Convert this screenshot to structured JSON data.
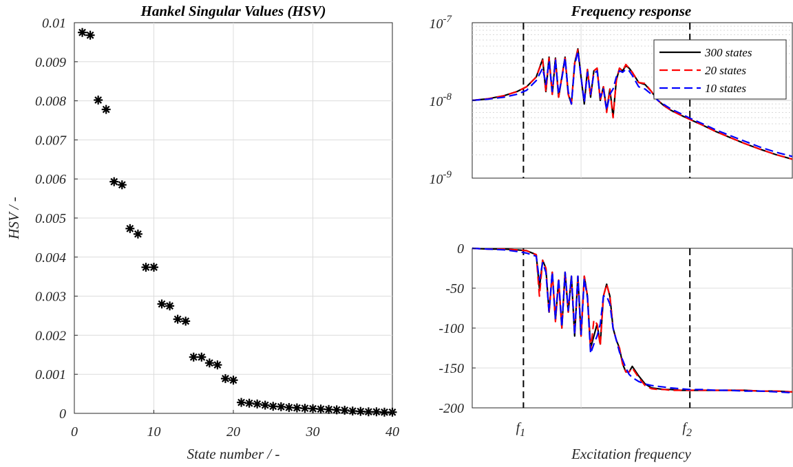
{
  "chart_data": [
    {
      "type": "scatter",
      "title": "Hankel Singular Values (HSV)",
      "xlabel": "State number / -",
      "ylabel": "HSV / -",
      "xlim": [
        0,
        40
      ],
      "ylim": [
        0,
        0.01
      ],
      "xticks": [
        "0",
        "10",
        "20",
        "30",
        "40"
      ],
      "yticks": [
        "0",
        "0.001",
        "0.002",
        "0.003",
        "0.004",
        "0.005",
        "0.006",
        "0.007",
        "0.008",
        "0.009",
        "0.01"
      ],
      "grid": true,
      "marker": "*",
      "marker_color": "#000000",
      "series": [
        {
          "x": [
            1,
            2,
            3,
            4,
            5,
            6,
            7,
            8,
            9,
            10,
            11,
            12,
            13,
            14,
            15,
            16,
            17,
            18,
            19,
            20,
            21,
            22,
            23,
            24,
            25,
            26,
            27,
            28,
            29,
            30,
            31,
            32,
            33,
            34,
            35,
            36,
            37,
            38,
            39,
            40
          ],
          "y": [
            0.00975,
            0.00968,
            0.00802,
            0.00778,
            0.00593,
            0.00585,
            0.00473,
            0.00459,
            0.00374,
            0.00374,
            0.0028,
            0.00275,
            0.00241,
            0.00236,
            0.00144,
            0.00144,
            0.00129,
            0.00124,
            0.00089,
            0.00085,
            0.00028,
            0.00026,
            0.00024,
            0.00021,
            0.00018,
            0.00017,
            0.00015,
            0.00014,
            0.00013,
            0.00012,
            0.00011,
            0.0001,
            9e-05,
            8e-05,
            6e-05,
            5e-05,
            4e-05,
            4e-05,
            3e-05,
            3e-05
          ]
        }
      ]
    },
    {
      "type": "line",
      "title": "Frequency response",
      "yscale": "log",
      "ylim": [
        1e-09,
        1e-07
      ],
      "yticks": [
        {
          "base": "10",
          "exp": "-7"
        },
        {
          "base": "10",
          "exp": "-8"
        },
        {
          "base": "10",
          "exp": "-9"
        }
      ],
      "xlim": [
        0,
        1
      ],
      "grid": true,
      "legend_position": "top-right",
      "vlines": [
        {
          "label": "f",
          "sub": "1",
          "x": 0.16
        },
        {
          "label": "f",
          "sub": "2",
          "x": 0.68
        }
      ],
      "series": [
        {
          "name": "300 states",
          "color": "#000000",
          "dash": "solid",
          "x": [
            0,
            0.05,
            0.1,
            0.14,
            0.17,
            0.2,
            0.22,
            0.23,
            0.24,
            0.25,
            0.26,
            0.27,
            0.28,
            0.29,
            0.3,
            0.31,
            0.32,
            0.33,
            0.34,
            0.35,
            0.36,
            0.37,
            0.38,
            0.39,
            0.4,
            0.41,
            0.42,
            0.43,
            0.44,
            0.45,
            0.46,
            0.47,
            0.48,
            0.49,
            0.5,
            0.52,
            0.54,
            0.56,
            0.58,
            0.6,
            0.62,
            0.65,
            0.68,
            0.72,
            0.76,
            0.8,
            0.85,
            0.9,
            0.95,
            1.0
          ],
          "y": [
            1e-08,
            1.05e-08,
            1.15e-08,
            1.3e-08,
            1.5e-08,
            2e-08,
            3.4e-08,
            1.3e-08,
            3.6e-08,
            1.2e-08,
            3.5e-08,
            1.1e-08,
            2e-08,
            3.6e-08,
            1.2e-08,
            9e-09,
            3e-08,
            4.6e-08,
            2e-08,
            9e-09,
            2.5e-08,
            1.1e-08,
            2.4e-08,
            2.6e-08,
            1e-08,
            1.5e-08,
            7.5e-09,
            1.4e-08,
            6.2e-09,
            1.8e-08,
            2.6e-08,
            2.4e-08,
            2.8e-08,
            2.6e-08,
            2.3e-08,
            1.7e-08,
            1.6e-08,
            1.3e-08,
            1e-08,
            8.5e-09,
            7.5e-09,
            6.5e-09,
            5.7e-09,
            4.8e-09,
            4e-09,
            3.4e-09,
            2.8e-09,
            2.35e-09,
            2e-09,
            1.75e-09
          ]
        },
        {
          "name": "20 states",
          "color": "#ff0000",
          "dash": "dashed",
          "x": [
            0,
            0.05,
            0.1,
            0.14,
            0.17,
            0.2,
            0.22,
            0.23,
            0.24,
            0.25,
            0.26,
            0.27,
            0.28,
            0.29,
            0.3,
            0.31,
            0.32,
            0.33,
            0.34,
            0.35,
            0.36,
            0.37,
            0.38,
            0.39,
            0.4,
            0.41,
            0.42,
            0.43,
            0.44,
            0.45,
            0.46,
            0.47,
            0.48,
            0.49,
            0.5,
            0.52,
            0.54,
            0.56,
            0.58,
            0.6,
            0.62,
            0.65,
            0.68,
            0.72,
            0.76,
            0.8,
            0.85,
            0.9,
            0.95,
            1.0
          ],
          "y": [
            1e-08,
            1.05e-08,
            1.15e-08,
            1.3e-08,
            1.5e-08,
            2e-08,
            3.3e-08,
            1.3e-08,
            3.5e-08,
            1.2e-08,
            3.4e-08,
            1.1e-08,
            2e-08,
            3.5e-08,
            1.2e-08,
            9e-09,
            3e-08,
            4.5e-08,
            2e-08,
            9.5e-09,
            2.5e-08,
            1.1e-08,
            2.4e-08,
            2.6e-08,
            1e-08,
            1.5e-08,
            7e-09,
            1.4e-08,
            6e-09,
            1.8e-08,
            2.6e-08,
            2.4e-08,
            2.9e-08,
            2.6e-08,
            2.3e-08,
            1.7e-08,
            1.65e-08,
            1.3e-08,
            1e-08,
            8.5e-09,
            7.5e-09,
            6.5e-09,
            5.7e-09,
            4.8e-09,
            4e-09,
            3.4e-09,
            2.8e-09,
            2.35e-09,
            2e-09,
            1.75e-09
          ]
        },
        {
          "name": "10 states",
          "color": "#0000ff",
          "dash": "dashed",
          "x": [
            0,
            0.05,
            0.1,
            0.14,
            0.17,
            0.2,
            0.22,
            0.23,
            0.24,
            0.25,
            0.26,
            0.27,
            0.28,
            0.29,
            0.3,
            0.31,
            0.32,
            0.33,
            0.34,
            0.35,
            0.36,
            0.37,
            0.38,
            0.39,
            0.4,
            0.41,
            0.42,
            0.43,
            0.44,
            0.45,
            0.46,
            0.47,
            0.48,
            0.49,
            0.5,
            0.52,
            0.54,
            0.56,
            0.58,
            0.6,
            0.62,
            0.65,
            0.68,
            0.72,
            0.76,
            0.8,
            0.85,
            0.9,
            0.95,
            1.0
          ],
          "y": [
            1e-08,
            1.04e-08,
            1.1e-08,
            1.2e-08,
            1.35e-08,
            1.8e-08,
            2.6e-08,
            1.6e-08,
            3.2e-08,
            1.3e-08,
            3.3e-08,
            1.2e-08,
            1.9e-08,
            3.5e-08,
            1.3e-08,
            9e-09,
            2.8e-08,
            4.3e-08,
            2e-08,
            9.5e-09,
            2.3e-08,
            1.2e-08,
            2.2e-08,
            2.4e-08,
            1.1e-08,
            1.4e-08,
            7.5e-09,
            1.2e-08,
            1.4e-08,
            2e-08,
            2.4e-08,
            2.3e-08,
            2.5e-08,
            2.4e-08,
            2.1e-08,
            1.5e-08,
            1.4e-08,
            1.2e-08,
            1e-08,
            8.8e-09,
            7.8e-09,
            6.8e-09,
            5.9e-09,
            5e-09,
            4.2e-09,
            3.6e-09,
            3e-09,
            2.5e-09,
            2.15e-09,
            1.9e-09
          ]
        }
      ]
    },
    {
      "type": "line",
      "xlabel": "Excitation frequency",
      "ylim": [
        -200,
        0
      ],
      "yticks": [
        "0",
        "-50",
        "-100",
        "-150",
        "-200"
      ],
      "xlim": [
        0,
        1
      ],
      "grid": true,
      "vlines": [
        {
          "label": "f",
          "sub": "1",
          "x": 0.16
        },
        {
          "label": "f",
          "sub": "2",
          "x": 0.68
        }
      ],
      "series": [
        {
          "name": "300 states",
          "color": "#000000",
          "dash": "solid",
          "x": [
            0,
            0.05,
            0.1,
            0.14,
            0.17,
            0.2,
            0.21,
            0.22,
            0.23,
            0.24,
            0.25,
            0.26,
            0.27,
            0.28,
            0.29,
            0.3,
            0.31,
            0.32,
            0.33,
            0.34,
            0.35,
            0.36,
            0.37,
            0.38,
            0.39,
            0.4,
            0.41,
            0.42,
            0.43,
            0.44,
            0.45,
            0.46,
            0.47,
            0.48,
            0.49,
            0.5,
            0.52,
            0.54,
            0.56,
            0.58,
            0.6,
            0.62,
            0.65,
            0.68,
            0.72,
            0.76,
            0.8,
            0.85,
            0.9,
            0.95,
            1.0
          ],
          "y": [
            0,
            -1,
            -1,
            -2,
            -3,
            -8,
            -50,
            -15,
            -25,
            -80,
            -30,
            -90,
            -40,
            -100,
            -30,
            -80,
            -35,
            -110,
            -35,
            -110,
            -35,
            -60,
            -125,
            -110,
            -95,
            -120,
            -60,
            -45,
            -60,
            -100,
            -115,
            -125,
            -145,
            -155,
            -155,
            -148,
            -160,
            -170,
            -175,
            -176,
            -177,
            -177,
            -178,
            -178,
            -178,
            -178,
            -178,
            -178,
            -179,
            -179,
            -180
          ]
        },
        {
          "name": "20 states",
          "color": "#ff0000",
          "dash": "dashed",
          "x": [
            0,
            0.05,
            0.1,
            0.14,
            0.17,
            0.2,
            0.21,
            0.22,
            0.23,
            0.24,
            0.25,
            0.26,
            0.27,
            0.28,
            0.29,
            0.3,
            0.31,
            0.32,
            0.33,
            0.34,
            0.35,
            0.36,
            0.37,
            0.38,
            0.39,
            0.4,
            0.41,
            0.42,
            0.43,
            0.44,
            0.45,
            0.46,
            0.47,
            0.48,
            0.49,
            0.5,
            0.52,
            0.54,
            0.56,
            0.58,
            0.6,
            0.62,
            0.65,
            0.68,
            0.72,
            0.76,
            0.8,
            0.85,
            0.9,
            0.95,
            1.0
          ],
          "y": [
            0,
            -1,
            -1,
            -2,
            -3,
            -8,
            -60,
            -15,
            -25,
            -82,
            -30,
            -92,
            -40,
            -100,
            -30,
            -80,
            -35,
            -108,
            -35,
            -110,
            -35,
            -60,
            -128,
            -90,
            -95,
            -122,
            -60,
            -45,
            -60,
            -100,
            -115,
            -125,
            -145,
            -155,
            -155,
            -150,
            -162,
            -172,
            -176,
            -177,
            -177,
            -178,
            -178,
            -178,
            -178,
            -178,
            -178,
            -178,
            -179,
            -179,
            -180
          ]
        },
        {
          "name": "10 states",
          "color": "#0000ff",
          "dash": "dashed",
          "x": [
            0,
            0.05,
            0.1,
            0.14,
            0.17,
            0.2,
            0.21,
            0.22,
            0.23,
            0.24,
            0.25,
            0.26,
            0.27,
            0.28,
            0.29,
            0.3,
            0.31,
            0.32,
            0.33,
            0.34,
            0.35,
            0.36,
            0.37,
            0.38,
            0.39,
            0.4,
            0.41,
            0.42,
            0.43,
            0.44,
            0.45,
            0.46,
            0.47,
            0.48,
            0.49,
            0.5,
            0.52,
            0.54,
            0.56,
            0.58,
            0.6,
            0.62,
            0.65,
            0.68,
            0.72,
            0.76,
            0.8,
            0.85,
            0.9,
            0.95,
            1.0
          ],
          "y": [
            0,
            -1,
            -2,
            -4,
            -6,
            -10,
            -40,
            -18,
            -30,
            -80,
            -30,
            -88,
            -38,
            -98,
            -30,
            -78,
            -35,
            -108,
            -35,
            -108,
            -38,
            -62,
            -132,
            -120,
            -110,
            -95,
            -60,
            -60,
            -70,
            -100,
            -115,
            -130,
            -140,
            -150,
            -158,
            -162,
            -167,
            -170,
            -172,
            -173,
            -174,
            -175,
            -176,
            -177,
            -177,
            -178,
            -178,
            -179,
            -179,
            -180,
            -181
          ]
        }
      ]
    }
  ]
}
